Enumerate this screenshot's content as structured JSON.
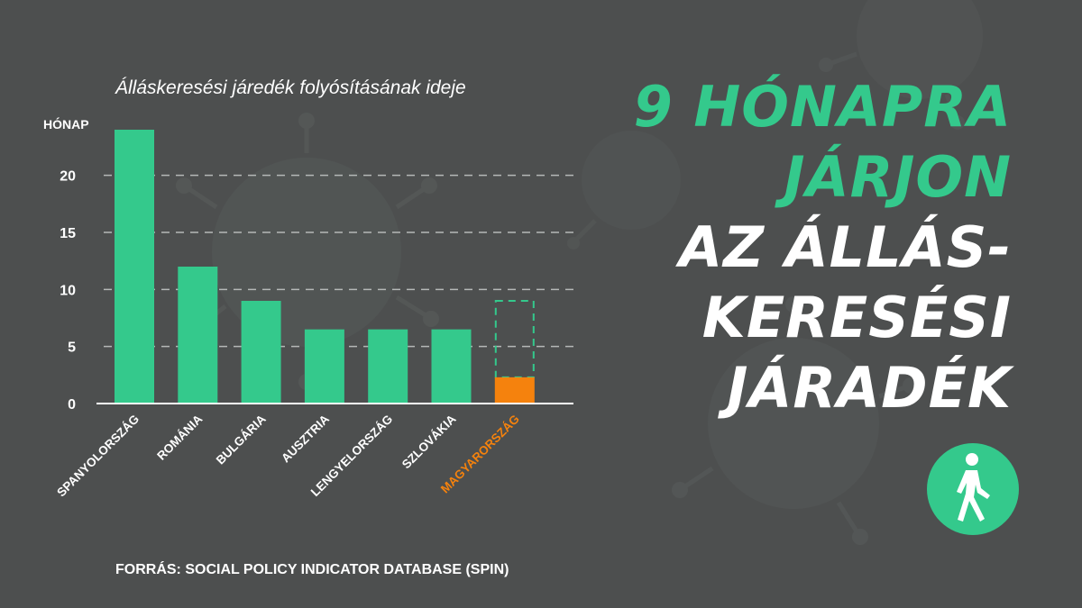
{
  "chart_data": {
    "type": "bar",
    "title": "Álláskeresési járedék folyósításának ideje",
    "ylabel": "HÓNAP",
    "ylim": [
      0,
      24
    ],
    "yticks": [
      0,
      5,
      10,
      15,
      20
    ],
    "grid": true,
    "categories": [
      "SPANYOLORSZÁG",
      "ROMÁNIA",
      "BULGÁRIA",
      "AUSZTRIA",
      "LENGYELORSZÁG",
      "SZLOVÁKIA",
      "MAGYARORSZÁG"
    ],
    "values": [
      24,
      12,
      9,
      6.5,
      6.5,
      6.5,
      2.3
    ],
    "highlight": {
      "category": "MAGYARORSZÁG",
      "proposed_value": 9
    },
    "colors": {
      "bar": "#34c98c",
      "highlight": "#f5820d"
    }
  },
  "source_text": "FORRÁS:  SOCIAL POLICY INDICATOR DATABASE (SPIN)",
  "headline": {
    "line1": "9 HÓNAPRA",
    "line2": "JÁRJON",
    "line3": "AZ ÁLLÁS-",
    "line4": "KERESÉSI",
    "line5": "JÁRADÉK"
  },
  "icons": {
    "badge": "walking-person-icon"
  },
  "colors": {
    "background": "#4d4f4f",
    "accent_green": "#34c98c",
    "accent_orange": "#f5820d",
    "text": "#ffffff"
  }
}
